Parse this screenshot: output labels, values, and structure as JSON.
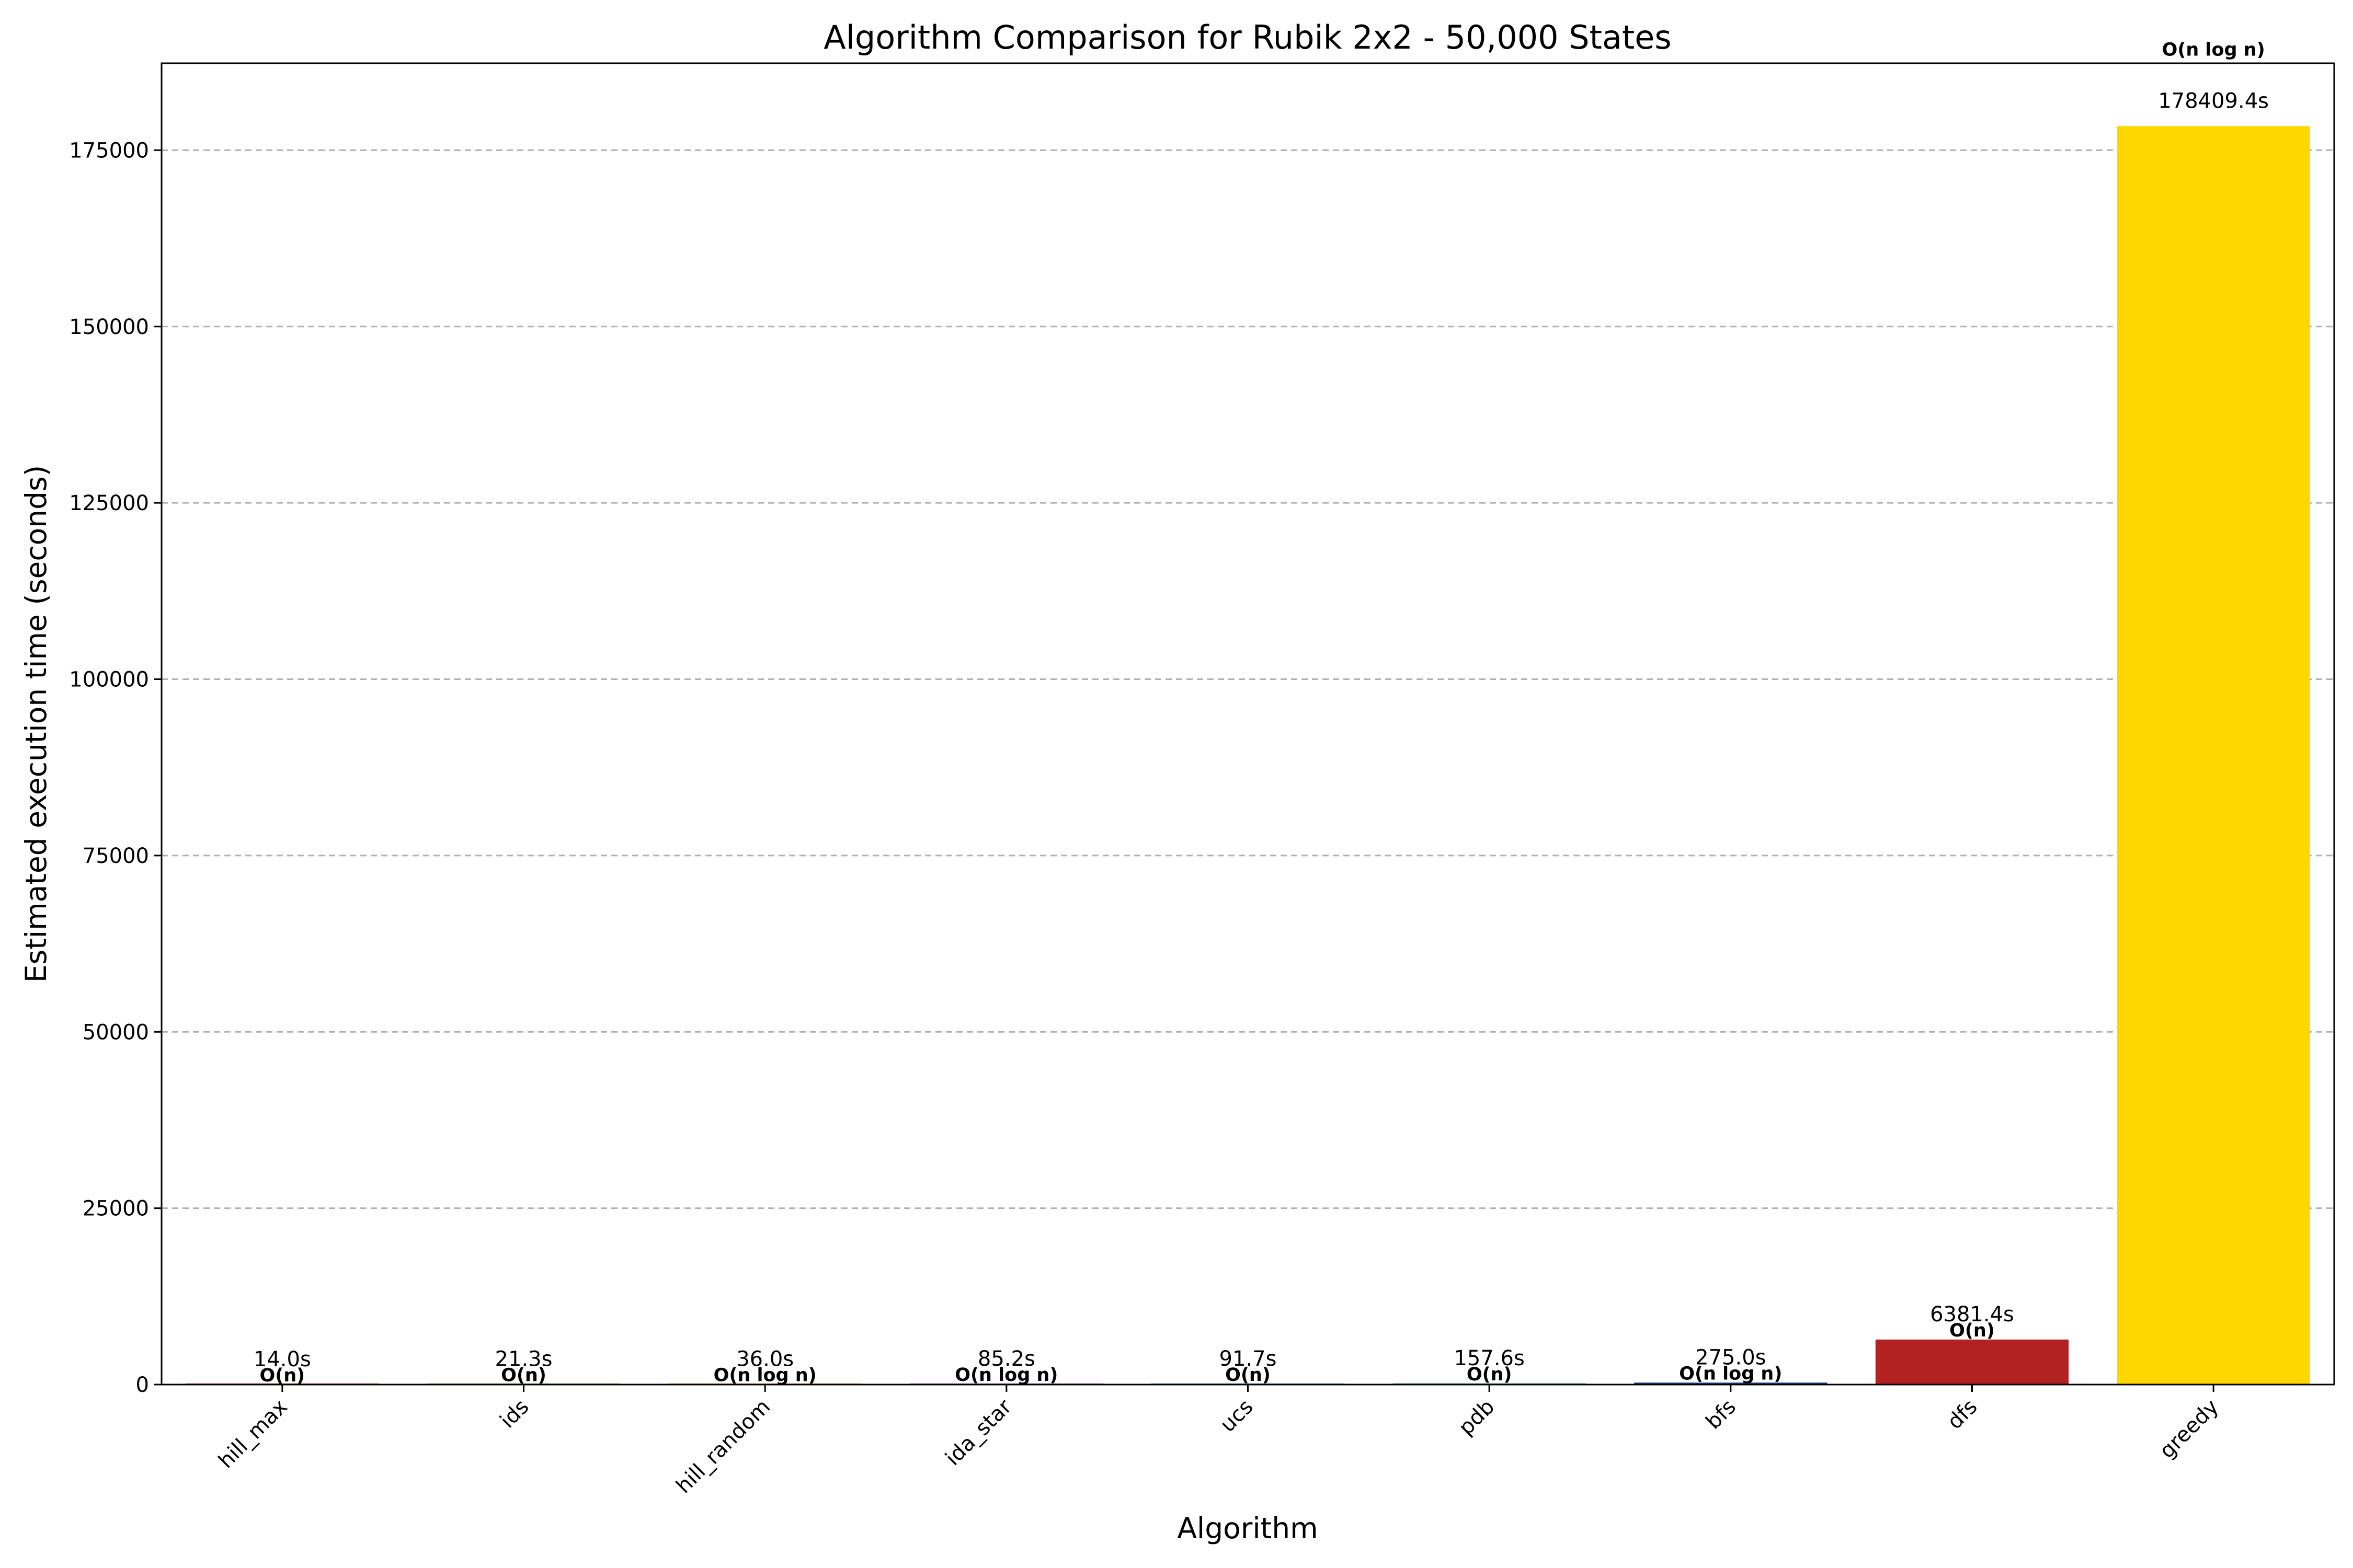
{
  "chart_data": {
    "type": "bar",
    "title": "Algorithm Comparison for Rubik 2x2 - 50,000 States",
    "xlabel": "Algorithm",
    "ylabel": "Estimated execution time (seconds)",
    "categories": [
      "hill_max",
      "ids",
      "hill_random",
      "ida_star",
      "ucs",
      "pdb",
      "bfs",
      "dfs",
      "greedy"
    ],
    "values": [
      14.0,
      21.3,
      36.0,
      85.2,
      91.7,
      157.6,
      275.0,
      6381.4,
      178409.4
    ],
    "value_labels": [
      "14.0s",
      "21.3s",
      "36.0s",
      "85.2s",
      "91.7s",
      "157.6s",
      "275.0s",
      "6381.4s",
      "178409.4s"
    ],
    "complexity_labels": [
      "O(n)",
      "O(n)",
      "O(n log n)",
      "O(n log n)",
      "O(n)",
      "O(n)",
      "O(n log n)",
      "O(n)",
      "O(n log n)"
    ],
    "colors": [
      "#e41a1c",
      "#4daf4a",
      "#ff7f00",
      "#984ea3",
      "#377eb8",
      "#2e8b57",
      "#1f3f7a",
      "#b22222",
      "#ffd700"
    ],
    "ylim": [
      0,
      187330
    ],
    "yticks": [
      0,
      25000,
      50000,
      75000,
      100000,
      125000,
      150000,
      175000
    ],
    "ytick_labels": [
      "0",
      "25000",
      "50000",
      "75000",
      "100000",
      "125000",
      "150000",
      "175000"
    ],
    "grid": "y-dashed"
  }
}
